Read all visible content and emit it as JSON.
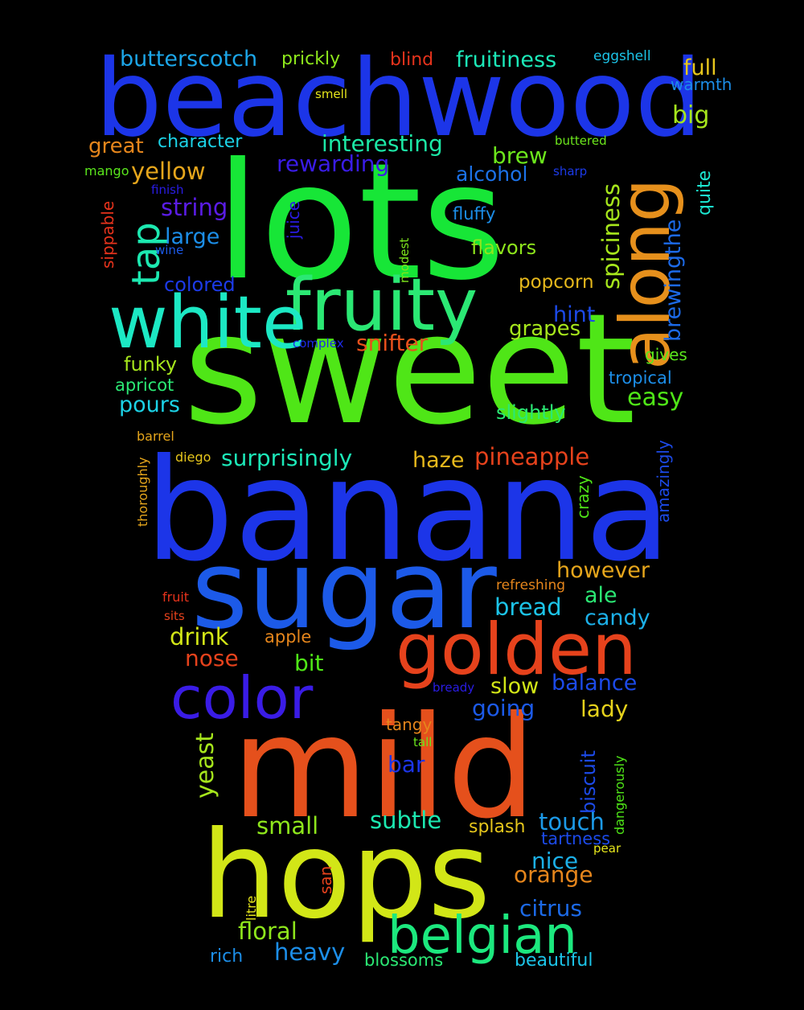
{
  "words": [
    {
      "id": "w0",
      "text": "sweet",
      "color": "#4fe617"
    },
    {
      "id": "w1",
      "text": "banana",
      "color": "#1c35e8"
    },
    {
      "id": "w2",
      "text": "lots",
      "color": "#17e637"
    },
    {
      "id": "w3",
      "text": "mild",
      "color": "#e5501c"
    },
    {
      "id": "w4",
      "text": "beachwood",
      "color": "#1c35e8"
    },
    {
      "id": "w5",
      "text": "hops",
      "color": "#d2e617"
    },
    {
      "id": "w6",
      "text": "sugar",
      "color": "#1c5ae8"
    },
    {
      "id": "w7",
      "text": "fruity",
      "color": "#2be874"
    },
    {
      "id": "w8",
      "text": "golden",
      "color": "#e6421c"
    },
    {
      "id": "w9",
      "text": "white",
      "color": "#1ce8c4"
    },
    {
      "id": "w10",
      "text": "along",
      "color": "#e6901c"
    },
    {
      "id": "w11",
      "text": "color",
      "color": "#3a1ce6"
    },
    {
      "id": "w12",
      "text": "belgian",
      "color": "#1ce87e"
    },
    {
      "id": "w13",
      "text": "tap",
      "color": "#1ce8b0"
    },
    {
      "id": "w14",
      "text": "butterscotch",
      "color": "#1ca6e8"
    },
    {
      "id": "w15",
      "text": "prickly",
      "color": "#8ee81c"
    },
    {
      "id": "w16",
      "text": "blind",
      "color": "#e6331c"
    },
    {
      "id": "w17",
      "text": "fruitiness",
      "color": "#1ce8b8"
    },
    {
      "id": "w18",
      "text": "eggshell",
      "color": "#1cc4e8"
    },
    {
      "id": "w19",
      "text": "full",
      "color": "#e6c61c"
    },
    {
      "id": "w20",
      "text": "warmth",
      "color": "#1c8ee8"
    },
    {
      "id": "w21",
      "text": "smell",
      "color": "#e6e61c"
    },
    {
      "id": "w22",
      "text": "big",
      "color": "#a6e61c"
    },
    {
      "id": "w23",
      "text": "great",
      "color": "#e6861c"
    },
    {
      "id": "w24",
      "text": "character",
      "color": "#1cd2e6"
    },
    {
      "id": "w25",
      "text": "interesting",
      "color": "#1ce8a6"
    },
    {
      "id": "w26",
      "text": "brew",
      "color": "#6ce61c"
    },
    {
      "id": "w27",
      "text": "buttered",
      "color": "#6ce61c"
    },
    {
      "id": "w28",
      "text": "yellow",
      "color": "#e6a61c"
    },
    {
      "id": "w29",
      "text": "rewarding",
      "color": "#3a1ce6"
    },
    {
      "id": "w30",
      "text": "alcohol",
      "color": "#1c72e8"
    },
    {
      "id": "w31",
      "text": "sharp",
      "color": "#1c3ae8"
    },
    {
      "id": "w32",
      "text": "mango",
      "color": "#5ae61c"
    },
    {
      "id": "w33",
      "text": "finish",
      "color": "#2a1ce6"
    },
    {
      "id": "w34",
      "text": "string",
      "color": "#5a1ce6"
    },
    {
      "id": "w35",
      "text": "juice",
      "color": "#2a1ce6"
    },
    {
      "id": "w36",
      "text": "fluffy",
      "color": "#1c8ee8"
    },
    {
      "id": "w37",
      "text": "spiciness",
      "color": "#a6e61c"
    },
    {
      "id": "w38",
      "text": "brewingthe",
      "color": "#1c6ae8"
    },
    {
      "id": "w39",
      "text": "quite",
      "color": "#1ce8d2"
    },
    {
      "id": "w40",
      "text": "sippable",
      "color": "#e6331c"
    },
    {
      "id": "w41",
      "text": "large",
      "color": "#1c8ee8"
    },
    {
      "id": "w42",
      "text": "wine",
      "color": "#1c5ae8"
    },
    {
      "id": "w43",
      "text": "modest",
      "color": "#7ee61c"
    },
    {
      "id": "w44",
      "text": "flavors",
      "color": "#8ee61c"
    },
    {
      "id": "w45",
      "text": "colored",
      "color": "#1c3ae8"
    },
    {
      "id": "w46",
      "text": "popcorn",
      "color": "#e6b81c"
    },
    {
      "id": "w47",
      "text": "hint",
      "color": "#1c4ae8"
    },
    {
      "id": "w48",
      "text": "grapes",
      "color": "#a6e61c"
    },
    {
      "id": "w49",
      "text": "complex",
      "color": "#1c2ae8"
    },
    {
      "id": "w50",
      "text": "snifter",
      "color": "#e6501c"
    },
    {
      "id": "w51",
      "text": "funky",
      "color": "#a6e61c"
    },
    {
      "id": "w52",
      "text": "gives",
      "color": "#5ae61c"
    },
    {
      "id": "w53",
      "text": "apricot",
      "color": "#2be874"
    },
    {
      "id": "w54",
      "text": "tropical",
      "color": "#1c8ee8"
    },
    {
      "id": "w55",
      "text": "pours",
      "color": "#1cd2e6"
    },
    {
      "id": "w56",
      "text": "easy",
      "color": "#4fe617"
    },
    {
      "id": "w57",
      "text": "slightly",
      "color": "#2be874"
    },
    {
      "id": "w58",
      "text": "barrel",
      "color": "#e6a61c"
    },
    {
      "id": "w59",
      "text": "diego",
      "color": "#e6c61c"
    },
    {
      "id": "w60",
      "text": "surprisingly",
      "color": "#1ce8b8"
    },
    {
      "id": "w61",
      "text": "haze",
      "color": "#e6b81c"
    },
    {
      "id": "w62",
      "text": "pineapple",
      "color": "#e6421c"
    },
    {
      "id": "w63",
      "text": "thoroughly",
      "color": "#e6a61c"
    },
    {
      "id": "w64",
      "text": "crazy",
      "color": "#4fe617"
    },
    {
      "id": "w65",
      "text": "amazingly",
      "color": "#1c4ae8"
    },
    {
      "id": "w66",
      "text": "however",
      "color": "#e6a61c"
    },
    {
      "id": "w67",
      "text": "refreshing",
      "color": "#e6861c"
    },
    {
      "id": "w68",
      "text": "fruit",
      "color": "#e6331c"
    },
    {
      "id": "w69",
      "text": "ale",
      "color": "#2be874"
    },
    {
      "id": "w70",
      "text": "bread",
      "color": "#1cc4e8"
    },
    {
      "id": "w71",
      "text": "sits",
      "color": "#e6421c"
    },
    {
      "id": "w72",
      "text": "candy",
      "color": "#1cb0e8"
    },
    {
      "id": "w73",
      "text": "drink",
      "color": "#d2e617"
    },
    {
      "id": "w74",
      "text": "apple",
      "color": "#e6861c"
    },
    {
      "id": "w75",
      "text": "nose",
      "color": "#e6421c"
    },
    {
      "id": "w76",
      "text": "bit",
      "color": "#4fe617"
    },
    {
      "id": "w77",
      "text": "bready",
      "color": "#2a1ce6"
    },
    {
      "id": "w78",
      "text": "slow",
      "color": "#d2e617"
    },
    {
      "id": "w79",
      "text": "balance",
      "color": "#1c4ae8"
    },
    {
      "id": "w80",
      "text": "going",
      "color": "#1c5ae8"
    },
    {
      "id": "w81",
      "text": "lady",
      "color": "#e6d21c"
    },
    {
      "id": "w82",
      "text": "yeast",
      "color": "#a6e61c"
    },
    {
      "id": "w83",
      "text": "tangy",
      "color": "#e6861c"
    },
    {
      "id": "w84",
      "text": "tall",
      "color": "#6ce61c"
    },
    {
      "id": "w85",
      "text": "biscuit",
      "color": "#1c4ae8"
    },
    {
      "id": "w86",
      "text": "dangerously",
      "color": "#4fe617"
    },
    {
      "id": "w87",
      "text": "bar",
      "color": "#1c35e8"
    },
    {
      "id": "w88",
      "text": "small",
      "color": "#8ee61c"
    },
    {
      "id": "w89",
      "text": "subtle",
      "color": "#1ce8b0"
    },
    {
      "id": "w90",
      "text": "splash",
      "color": "#e6c61c"
    },
    {
      "id": "w91",
      "text": "touch",
      "color": "#1c9ae8"
    },
    {
      "id": "w92",
      "text": "tartness",
      "color": "#1c4ae8"
    },
    {
      "id": "w93",
      "text": "pear",
      "color": "#e6e61c"
    },
    {
      "id": "w94",
      "text": "nice",
      "color": "#1cb0e8"
    },
    {
      "id": "w95",
      "text": "orange",
      "color": "#e6861c"
    },
    {
      "id": "w96",
      "text": "san",
      "color": "#e6421c"
    },
    {
      "id": "w97",
      "text": "litre",
      "color": "#e6e61c"
    },
    {
      "id": "w98",
      "text": "citrus",
      "color": "#1c6ae8"
    },
    {
      "id": "w99",
      "text": "floral",
      "color": "#8ee61c"
    },
    {
      "id": "w100",
      "text": "heavy",
      "color": "#1c8ee8"
    },
    {
      "id": "w101",
      "text": "rich",
      "color": "#1c8ee8"
    },
    {
      "id": "w102",
      "text": "blossoms",
      "color": "#2be874"
    },
    {
      "id": "w103",
      "text": "beautiful",
      "color": "#1cc4e8"
    }
  ]
}
